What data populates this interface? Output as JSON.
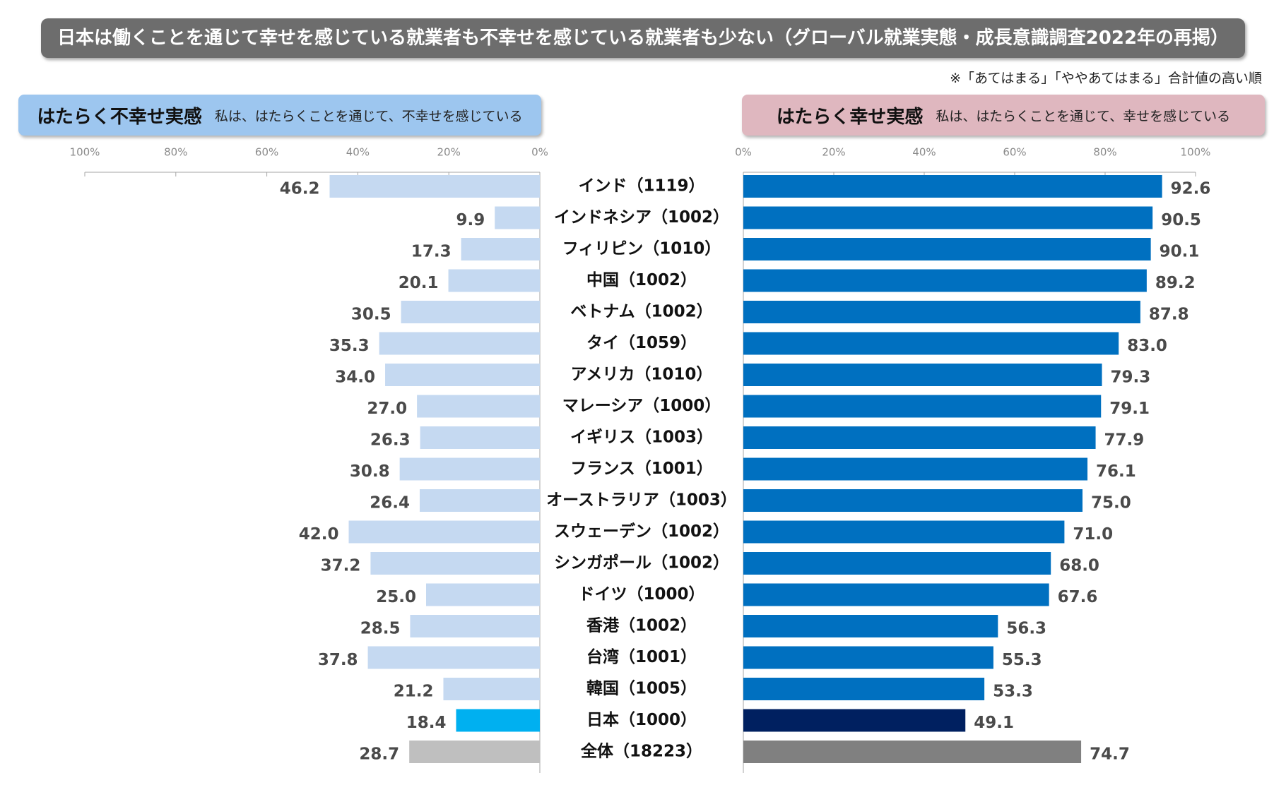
{
  "title": "日本は働くことを通じて幸せを感じている就業者も不幸せを感じている就業者も少ない（グローバル就業実態・成長意識調査2022年の再掲）",
  "note": "※「あてはまる」「ややあてはまる」合計値の高い順",
  "left_panel": {
    "title": "はたらく不幸せ実感",
    "subtitle": "私は、はたらくことを通じて、不幸せを感じている"
  },
  "right_panel": {
    "title": "はたらく幸せ実感",
    "subtitle": "私は、はたらくことを通じて、幸せを感じている"
  },
  "colors": {
    "left_bar": "#c5d9f1",
    "left_japan": "#00b0f0",
    "left_total": "#bfbfbf",
    "right_bar": "#0070c0",
    "right_japan": "#002060",
    "right_total": "#808080",
    "axis": "#a6a6a6"
  },
  "chart_data": [
    {
      "type": "bar",
      "orientation": "horizontal-reversed",
      "series": [
        {
          "name": "はたらく不幸せ実感",
          "values": [
            46.2,
            9.9,
            17.3,
            20.1,
            30.5,
            35.3,
            34.0,
            27.0,
            26.3,
            30.8,
            26.4,
            42.0,
            37.2,
            25.0,
            28.5,
            37.8,
            21.2,
            18.4,
            28.7
          ]
        }
      ],
      "categories": [
        "インド（1119）",
        "インドネシア（1002）",
        "フィリピン（1010）",
        "中国（1002）",
        "ベトナム（1002）",
        "タイ（1059）",
        "アメリカ（1010）",
        "マレーシア（1000）",
        "イギリス（1003）",
        "フランス（1001）",
        "オーストラリア（1003）",
        "スウェーデン（1002）",
        "シンガポール（1002）",
        "ドイツ（1000）",
        "香港（1002）",
        "台湾（1001）",
        "韓国（1005）",
        "日本（1000）",
        "全体（18223）"
      ],
      "xlim": [
        0,
        100
      ],
      "ticks": [
        "100%",
        "80%",
        "60%",
        "40%",
        "20%",
        "0%"
      ],
      "value_labels": [
        "46.2",
        "9.9",
        "17.3",
        "20.1",
        "30.5",
        "35.3",
        "34.0",
        "27.0",
        "26.3",
        "30.8",
        "26.4",
        "42.0",
        "37.2",
        "25.0",
        "28.5",
        "37.8",
        "21.2",
        "18.4",
        "28.7"
      ]
    },
    {
      "type": "bar",
      "orientation": "horizontal",
      "series": [
        {
          "name": "はたらく幸せ実感",
          "values": [
            92.6,
            90.5,
            90.1,
            89.2,
            87.8,
            83.0,
            79.3,
            79.1,
            77.9,
            76.1,
            75.0,
            71.0,
            68.0,
            67.6,
            56.3,
            55.3,
            53.3,
            49.1,
            74.7
          ]
        }
      ],
      "categories": [
        "インド（1119）",
        "インドネシア（1002）",
        "フィリピン（1010）",
        "中国（1002）",
        "ベトナム（1002）",
        "タイ（1059）",
        "アメリカ（1010）",
        "マレーシア（1000）",
        "イギリス（1003）",
        "フランス（1001）",
        "オーストラリア（1003）",
        "スウェーデン（1002）",
        "シンガポール（1002）",
        "ドイツ（1000）",
        "香港（1002）",
        "台湾（1001）",
        "韓国（1005）",
        "日本（1000）",
        "全体（18223）"
      ],
      "xlim": [
        0,
        100
      ],
      "ticks": [
        "0%",
        "20%",
        "40%",
        "60%",
        "80%",
        "100%"
      ],
      "value_labels": [
        "92.6",
        "90.5",
        "90.1",
        "89.2",
        "87.8",
        "83.0",
        "79.3",
        "79.1",
        "77.9",
        "76.1",
        "75.0",
        "71.0",
        "68.0",
        "67.6",
        "56.3",
        "55.3",
        "53.3",
        "49.1",
        "74.7"
      ]
    }
  ]
}
